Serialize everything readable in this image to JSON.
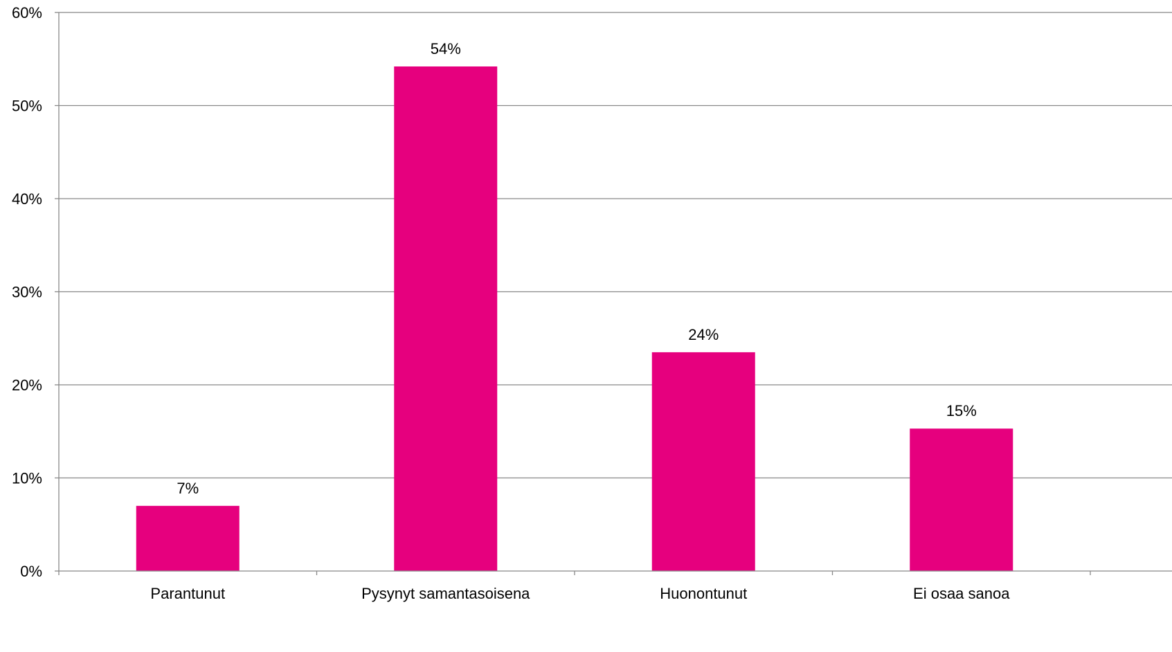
{
  "chart_data": {
    "type": "bar",
    "title": "",
    "xlabel": "",
    "ylabel": "",
    "categories": [
      "Parantunut",
      "Pysynyt samantasoisena",
      "Huonontunut",
      "Ei osaa sanoa"
    ],
    "values": [
      7,
      54,
      24,
      15
    ],
    "data_labels": [
      "7%",
      "54%",
      "24%",
      "15%"
    ],
    "value_precise": [
      7.0,
      54.2,
      23.5,
      15.3
    ],
    "ylim": [
      0,
      60
    ],
    "yticks": [
      0,
      10,
      20,
      30,
      40,
      50,
      60
    ],
    "ytick_labels": [
      "0%",
      "10%",
      "20%",
      "30%",
      "40%",
      "50%",
      "60%"
    ],
    "grid": true,
    "legend": "none",
    "colors": {
      "bar": "#E6007E",
      "grid": "#888888",
      "axis": "#888888",
      "text": "#000000"
    }
  }
}
